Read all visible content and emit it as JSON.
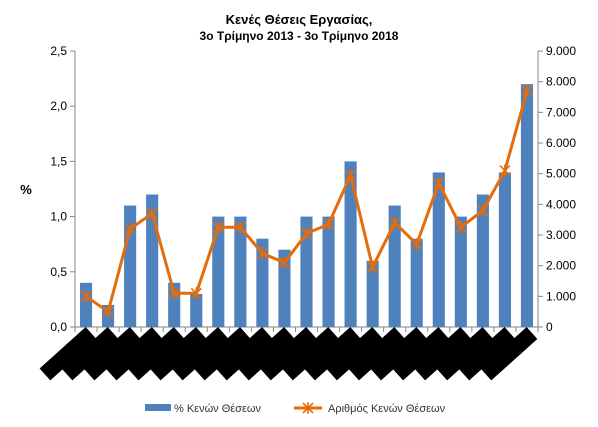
{
  "chart_data": {
    "type": "bar",
    "title": "Κενές Θέσεις Εργασίας,",
    "subtitle": "3ο Τρίμηνο  2013 - 3ο Τρίμηνο  2018",
    "ylabel_left": "%",
    "ylim_left": [
      0,
      2.5
    ],
    "yticks_left": [
      "0,0",
      "0,5",
      "1,0",
      "1,5",
      "2,0",
      "2,5"
    ],
    "ylim_right": [
      0,
      9000
    ],
    "yticks_right": [
      "0",
      "1.000",
      "2.000",
      "3.000",
      "4.000",
      "5.000",
      "6.000",
      "7.000",
      "8.000",
      "9.000"
    ],
    "grid": false,
    "legend_position": "bottom",
    "category_count": 21,
    "series": [
      {
        "name": "% Κενών Θέσεων",
        "type": "bar",
        "axis": "left",
        "color": "#4F81BD",
        "values": [
          0.4,
          0.2,
          1.1,
          1.2,
          0.4,
          0.3,
          1.0,
          1.0,
          0.8,
          0.7,
          1.0,
          1.0,
          1.5,
          0.6,
          1.1,
          0.8,
          1.4,
          1.0,
          1.2,
          1.4,
          2.2
        ]
      },
      {
        "name": "Αριθμός Κενών Θέσεων",
        "type": "line",
        "axis": "right",
        "color": "#E46C0A",
        "values": [
          1000,
          500,
          3200,
          3700,
          1100,
          1100,
          3250,
          3250,
          2400,
          2100,
          3050,
          3350,
          4950,
          1950,
          3400,
          2700,
          4700,
          3250,
          3800,
          5100,
          7700
        ]
      }
    ]
  }
}
